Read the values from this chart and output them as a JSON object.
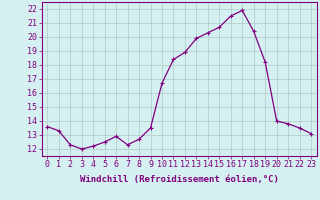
{
  "x": [
    0,
    1,
    2,
    3,
    4,
    5,
    6,
    7,
    8,
    9,
    10,
    11,
    12,
    13,
    14,
    15,
    16,
    17,
    18,
    19,
    20,
    21,
    22,
    23
  ],
  "y": [
    13.6,
    13.3,
    12.3,
    12.0,
    12.2,
    12.5,
    12.9,
    12.3,
    12.7,
    13.5,
    16.7,
    18.4,
    18.9,
    19.9,
    20.3,
    20.7,
    21.5,
    21.9,
    20.4,
    18.2,
    14.0,
    13.8,
    13.5,
    13.1
  ],
  "line_color": "#800080",
  "marker": "+",
  "marker_size": 3,
  "xlabel": "Windchill (Refroidissement éolien,°C)",
  "xlabel_fontsize": 6.5,
  "ylabel_ticks": [
    12,
    13,
    14,
    15,
    16,
    17,
    18,
    19,
    20,
    21,
    22
  ],
  "ylim": [
    11.5,
    22.5
  ],
  "xlim": [
    -0.5,
    23.5
  ],
  "bg_color": "#d4f0f0",
  "grid_color": "#b0c8c8",
  "tick_fontsize": 6,
  "linewidth": 0.9
}
